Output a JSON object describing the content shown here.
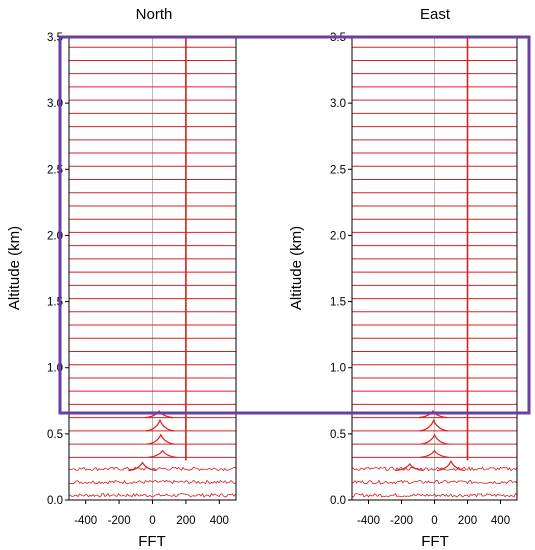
{
  "chart_data": [
    {
      "type": "line",
      "title": "North",
      "xlabel": "FFT",
      "ylabel": "Altitude (km)",
      "xlim": [
        -500,
        500
      ],
      "ylim": [
        0.0,
        3.5
      ],
      "xticks": [
        "-400",
        "-200",
        "0",
        "200",
        "400"
      ],
      "yticks": [
        "0.0",
        "0.5",
        "1.0",
        "1.5",
        "2.0",
        "2.5",
        "3.0",
        "3.5"
      ],
      "trace_spacing_km": 0.1,
      "spectral_line_fft": 200,
      "spectral_line_from_km": 0.3,
      "peaks": [
        {
          "altitude_km": 0.6,
          "fft": 40,
          "height_km": 0.05
        },
        {
          "altitude_km": 0.5,
          "fft": 45,
          "height_km": 0.08
        },
        {
          "altitude_km": 0.4,
          "fft": 50,
          "height_km": 0.07
        },
        {
          "altitude_km": 0.3,
          "fft": 60,
          "height_km": 0.05
        },
        {
          "altitude_km": 0.2,
          "fft": -60,
          "height_km": 0.06
        }
      ],
      "noisy_traces_km": [
        0.0,
        0.1,
        0.2
      ]
    },
    {
      "type": "line",
      "title": "East",
      "xlabel": "FFT",
      "ylabel": "Altitude (km)",
      "xlim": [
        -500,
        500
      ],
      "ylim": [
        0.0,
        3.5
      ],
      "xticks": [
        "-400",
        "-200",
        "0",
        "200",
        "400"
      ],
      "yticks": [
        "0.0",
        "0.5",
        "1.0",
        "1.5",
        "2.0",
        "2.5",
        "3.0",
        "3.5"
      ],
      "trace_spacing_km": 0.1,
      "spectral_line_fft": 200,
      "spectral_line_from_km": 0.3,
      "peaks": [
        {
          "altitude_km": 0.6,
          "fft": -10,
          "height_km": 0.05
        },
        {
          "altitude_km": 0.5,
          "fft": -5,
          "height_km": 0.08
        },
        {
          "altitude_km": 0.4,
          "fft": 0,
          "height_km": 0.07
        },
        {
          "altitude_km": 0.3,
          "fft": 0,
          "height_km": 0.05
        },
        {
          "altitude_km": 0.2,
          "fft": -150,
          "height_km": 0.05
        },
        {
          "altitude_km": 0.2,
          "fft": 100,
          "height_km": 0.07
        }
      ],
      "noisy_traces_km": [
        0.0,
        0.1,
        0.2
      ]
    }
  ],
  "highlight": {
    "ymin_km": 0.65,
    "ymax_km": 3.5,
    "color": "#6a3fa0"
  },
  "colors": {
    "trace": "#d62020",
    "zero_line": "#bbbbbb",
    "axes": "#000000"
  }
}
